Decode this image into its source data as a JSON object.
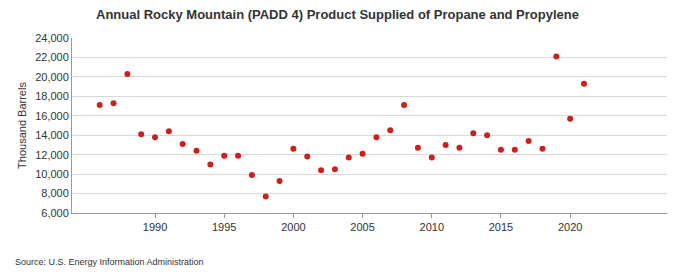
{
  "chart_data": {
    "type": "scatter",
    "title": "Annual Rocky Mountain (PADD 4) Product Supplied of Propane and Propylene",
    "y_label": "Thousand Barrels",
    "source": "Source: U.S. Energy Information Administration",
    "x": [
      1986,
      1987,
      1988,
      1989,
      1990,
      1991,
      1992,
      1993,
      1994,
      1995,
      1996,
      1997,
      1998,
      1999,
      2000,
      2001,
      2002,
      2003,
      2004,
      2005,
      2006,
      2007,
      2008,
      2009,
      2010,
      2011,
      2012,
      2013,
      2014,
      2015,
      2016,
      2017,
      2018,
      2019,
      2020,
      2021
    ],
    "values": [
      17100,
      17300,
      20300,
      14100,
      13800,
      14400,
      13100,
      12400,
      11000,
      11900,
      11900,
      9900,
      7700,
      9300,
      12600,
      11800,
      10400,
      10500,
      11700,
      12100,
      13800,
      14500,
      17100,
      12700,
      11700,
      13000,
      12700,
      14200,
      14000,
      12500,
      12500,
      13400,
      12600,
      22100,
      15700,
      19300
    ],
    "color": "#cc1f1f",
    "marker": "circle",
    "xlim": [
      1984,
      2027
    ],
    "xticks": [
      1990,
      1995,
      2000,
      2005,
      2010,
      2015,
      2020
    ],
    "ylim": [
      6000,
      24000
    ],
    "yticks": [
      {
        "value": 6000,
        "label": "6,000"
      },
      {
        "value": 8000,
        "label": "8,000"
      },
      {
        "value": 10000,
        "label": "10,000"
      },
      {
        "value": 12000,
        "label": "12,000"
      },
      {
        "value": 14000,
        "label": "14,000"
      },
      {
        "value": 16000,
        "label": "16,000"
      },
      {
        "value": 18000,
        "label": "18,000"
      },
      {
        "value": 20000,
        "label": "20,000"
      },
      {
        "value": 22000,
        "label": "22,000"
      },
      {
        "value": 24000,
        "label": "24,000"
      }
    ],
    "grid": true
  }
}
